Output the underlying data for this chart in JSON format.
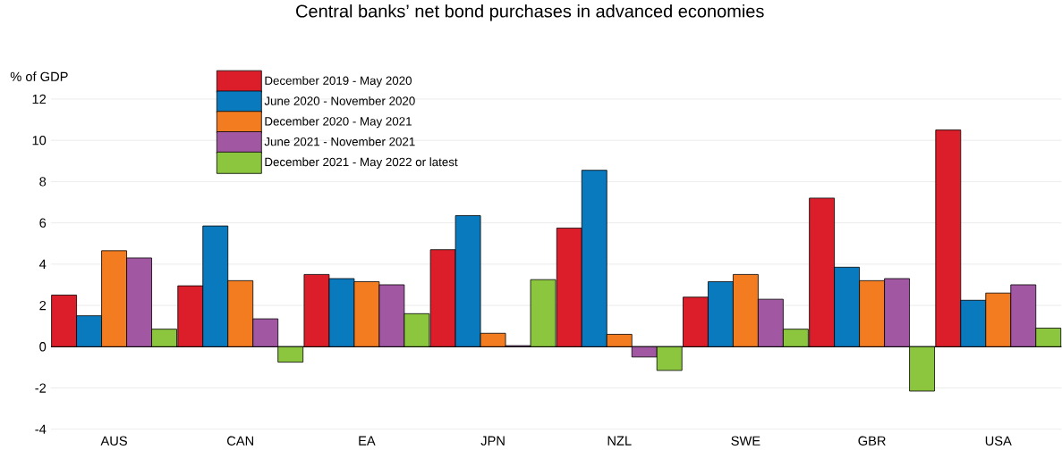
{
  "chart_data": {
    "type": "bar",
    "title": "Central banks’ net bond purchases in advanced economies",
    "ylabel": "% of GDP",
    "categories": [
      "AUS",
      "CAN",
      "EA",
      "JPN",
      "NZL",
      "SWE",
      "GBR",
      "USA"
    ],
    "series": [
      {
        "name": "December 2019 - May 2020",
        "color": "#dc1e2a",
        "values": [
          2.5,
          2.95,
          3.5,
          4.7,
          5.75,
          2.4,
          7.2,
          10.5
        ]
      },
      {
        "name": "June 2020 - November 2020",
        "color": "#0a7abf",
        "values": [
          1.5,
          5.85,
          3.3,
          6.35,
          8.55,
          3.15,
          3.85,
          2.25
        ]
      },
      {
        "name": "December 2020 - May 2021",
        "color": "#f47c20",
        "values": [
          4.65,
          3.2,
          3.15,
          0.65,
          0.6,
          3.5,
          3.2,
          2.6
        ]
      },
      {
        "name": "June 2021 - November 2021",
        "color": "#a157a2",
        "values": [
          4.3,
          1.35,
          3.0,
          0.05,
          -0.5,
          2.3,
          3.3,
          3.0
        ]
      },
      {
        "name": "December 2021 - May 2022 or latest",
        "color": "#8cc63f",
        "values": [
          0.85,
          -0.75,
          1.6,
          3.25,
          -1.15,
          0.85,
          -2.15,
          0.9
        ]
      }
    ],
    "ylim": [
      -4,
      12
    ],
    "yticks": [
      -4,
      -2,
      0,
      2,
      4,
      6,
      8,
      10,
      12
    ],
    "grid": "y",
    "legend": "top left"
  }
}
